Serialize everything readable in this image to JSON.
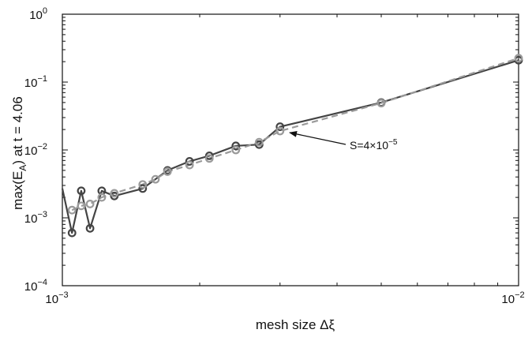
{
  "chart_data": {
    "type": "line",
    "title": "",
    "xlabel": "mesh size Δξ",
    "ylabel_parts": {
      "pre": "max(E",
      "sub": "A",
      "post": ") at t = 4.06"
    },
    "x_scale": "log",
    "y_scale": "log",
    "xlim": [
      0.001,
      0.01
    ],
    "ylim": [
      0.0001,
      1
    ],
    "x_ticks": [
      {
        "value": 0.001,
        "base": "10",
        "exp": "−3"
      },
      {
        "value": 0.01,
        "base": "10",
        "exp": "−2"
      }
    ],
    "y_ticks": [
      {
        "value": 0.0001,
        "base": "10",
        "exp": "−4"
      },
      {
        "value": 0.001,
        "base": "10",
        "exp": "−3"
      },
      {
        "value": 0.01,
        "base": "10",
        "exp": "−2"
      },
      {
        "value": 0.1,
        "base": "10",
        "exp": "−1"
      },
      {
        "value": 1,
        "base": "10",
        "exp": "0"
      }
    ],
    "grid": false,
    "series": [
      {
        "color": "#444444",
        "style": "solid",
        "marker": "circle",
        "x": [
          0.001,
          0.00105,
          0.0011,
          0.00115,
          0.00122,
          0.0013,
          0.0015,
          0.0017,
          0.0019,
          0.0021,
          0.0024,
          0.0027,
          0.003,
          0.005,
          0.01
        ],
        "y": [
          0.0027,
          0.0006,
          0.0025,
          0.0007,
          0.0025,
          0.0021,
          0.0027,
          0.005,
          0.0068,
          0.0082,
          0.0115,
          0.012,
          0.022,
          0.05,
          0.21
        ],
        "marker_x": [
          0.00105,
          0.0011,
          0.00115,
          0.00122,
          0.0013,
          0.0015,
          0.0017,
          0.0019,
          0.0021,
          0.0024,
          0.0027,
          0.003,
          0.005,
          0.01
        ],
        "marker_y": [
          0.0006,
          0.0025,
          0.0007,
          0.0025,
          0.0021,
          0.0027,
          0.005,
          0.0068,
          0.0082,
          0.0115,
          0.012,
          0.022,
          0.05,
          0.21
        ]
      },
      {
        "color": "#9a9a9a",
        "style": "dashed",
        "marker": "circle",
        "x": [
          0.00105,
          0.0011,
          0.00115,
          0.00122,
          0.0013,
          0.0015,
          0.0016,
          0.0017,
          0.0019,
          0.0021,
          0.0024,
          0.0027,
          0.003,
          0.005,
          0.01
        ],
        "y": [
          0.0013,
          0.0015,
          0.0016,
          0.002,
          0.0023,
          0.0031,
          0.0037,
          0.0048,
          0.006,
          0.0075,
          0.01,
          0.013,
          0.019,
          0.049,
          0.225
        ],
        "marker_x": [
          0.00105,
          0.0011,
          0.00115,
          0.00122,
          0.0013,
          0.0015,
          0.0016,
          0.0017,
          0.0019,
          0.0021,
          0.0024,
          0.0027,
          0.003,
          0.005,
          0.01
        ],
        "marker_y": [
          0.0013,
          0.0015,
          0.0016,
          0.002,
          0.0023,
          0.0031,
          0.0037,
          0.0048,
          0.006,
          0.0075,
          0.01,
          0.013,
          0.019,
          0.049,
          0.225
        ]
      }
    ],
    "annotation": {
      "text_pre": "S=4×10",
      "text_exp": "−5",
      "arrow_target_x": 0.0031,
      "arrow_target_y": 0.019
    }
  }
}
